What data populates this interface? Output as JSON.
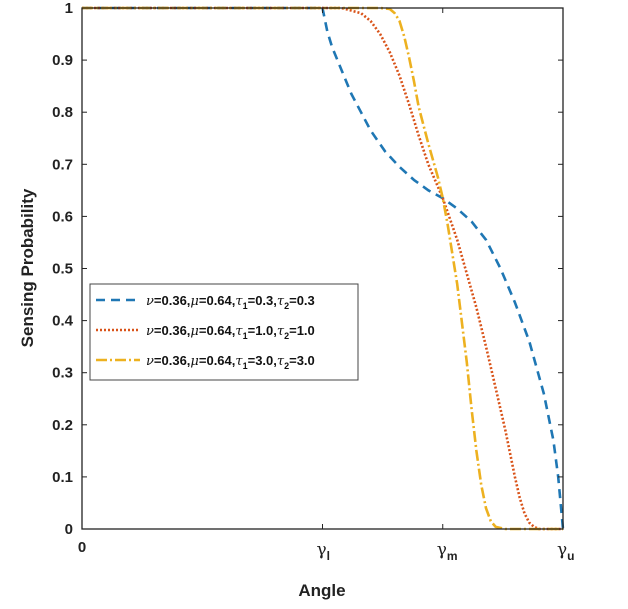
{
  "chart_data": {
    "type": "line",
    "title": "",
    "xlabel": "Angle",
    "ylabel": "Sensing Probability",
    "xlim": [
      0,
      1
    ],
    "ylim": [
      0,
      1
    ],
    "y_ticks": [
      "0",
      "0.1",
      "0.2",
      "0.3",
      "0.4",
      "0.5",
      "0.6",
      "0.7",
      "0.8",
      "0.9",
      "1"
    ],
    "x_ticks": [
      {
        "value": 0,
        "symbol": "0",
        "sub": ""
      },
      {
        "value": 0.5,
        "symbol": "γ",
        "sub": "l"
      },
      {
        "value": 0.75,
        "symbol": "γ",
        "sub": "m"
      },
      {
        "value": 1,
        "symbol": "γ",
        "sub": "u"
      }
    ],
    "grid": false,
    "legend_position": "middle-left",
    "series": [
      {
        "label_parts": [
          [
            "ν",
            "g"
          ],
          [
            "=0.36,",
            ""
          ],
          [
            "μ",
            "g"
          ],
          [
            "=0.64,",
            ""
          ],
          [
            "τ",
            "g"
          ],
          [
            "1",
            "s"
          ],
          [
            "=0.3,",
            ""
          ],
          [
            "τ",
            "g"
          ],
          [
            "2",
            "s"
          ],
          [
            "=0.3",
            ""
          ]
        ],
        "color": "#1f77b4",
        "dash": "9,6",
        "x": [
          0,
          0.5,
          0.51,
          0.52,
          0.54,
          0.56,
          0.58,
          0.6,
          0.63,
          0.66,
          0.69,
          0.72,
          0.75,
          0.78,
          0.81,
          0.84,
          0.87,
          0.9,
          0.93,
          0.96,
          0.98,
          0.99,
          1
        ],
        "y": [
          1,
          1,
          0.955,
          0.925,
          0.88,
          0.835,
          0.8,
          0.765,
          0.725,
          0.695,
          0.67,
          0.65,
          0.635,
          0.615,
          0.59,
          0.555,
          0.5,
          0.435,
          0.36,
          0.26,
          0.17,
          0.1,
          0
        ]
      },
      {
        "label_parts": [
          [
            "ν",
            "g"
          ],
          [
            "=0.36,",
            ""
          ],
          [
            "μ",
            "g"
          ],
          [
            "=0.64,",
            ""
          ],
          [
            "τ",
            "g"
          ],
          [
            "1",
            "s"
          ],
          [
            "=1.0,",
            ""
          ],
          [
            "τ",
            "g"
          ],
          [
            "2",
            "s"
          ],
          [
            "=1.0",
            ""
          ]
        ],
        "color": "#d95319",
        "dash": "2,2",
        "x": [
          0,
          0.5,
          0.54,
          0.58,
          0.6,
          0.62,
          0.64,
          0.66,
          0.68,
          0.7,
          0.72,
          0.75,
          0.78,
          0.8,
          0.82,
          0.84,
          0.86,
          0.88,
          0.9,
          0.91,
          0.92,
          0.93,
          0.94,
          0.95,
          1
        ],
        "y": [
          1,
          1,
          1,
          0.99,
          0.975,
          0.95,
          0.915,
          0.87,
          0.815,
          0.755,
          0.7,
          0.635,
          0.555,
          0.49,
          0.425,
          0.35,
          0.27,
          0.19,
          0.1,
          0.06,
          0.03,
          0.012,
          0.004,
          0,
          0
        ]
      },
      {
        "label_parts": [
          [
            "ν",
            "g"
          ],
          [
            "=0.36,",
            ""
          ],
          [
            "μ",
            "g"
          ],
          [
            "=0.64,",
            ""
          ],
          [
            "τ",
            "g"
          ],
          [
            "1",
            "s"
          ],
          [
            "=3.0,",
            ""
          ],
          [
            "τ",
            "g"
          ],
          [
            "2",
            "s"
          ],
          [
            "=3.0",
            ""
          ]
        ],
        "color": "#edb120",
        "dash": "11,3,2,3",
        "x": [
          0,
          0.5,
          0.6,
          0.62,
          0.64,
          0.65,
          0.66,
          0.67,
          0.68,
          0.69,
          0.7,
          0.72,
          0.74,
          0.75,
          0.76,
          0.78,
          0.8,
          0.81,
          0.82,
          0.83,
          0.84,
          0.85,
          0.86,
          0.88,
          0.9,
          0.95,
          1
        ],
        "y": [
          1,
          1,
          1,
          1,
          0.998,
          0.99,
          0.975,
          0.945,
          0.905,
          0.86,
          0.81,
          0.74,
          0.675,
          0.635,
          0.585,
          0.47,
          0.32,
          0.23,
          0.15,
          0.085,
          0.04,
          0.015,
          0.004,
          0,
          0,
          0,
          0
        ]
      }
    ]
  }
}
